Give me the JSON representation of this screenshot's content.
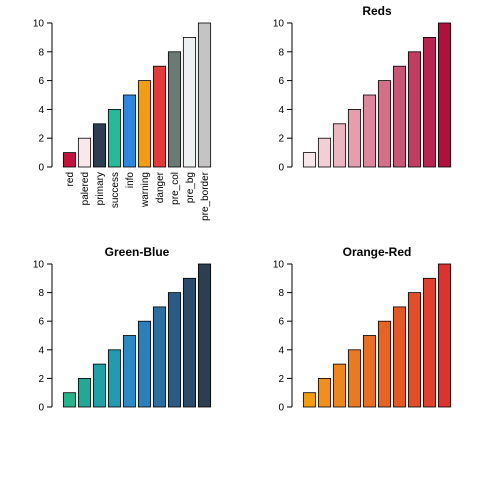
{
  "chart_data": [
    {
      "type": "bar",
      "categories": [
        "red",
        "palered",
        "primary",
        "success",
        "info",
        "warning",
        "danger",
        "pre_col",
        "pre_bg",
        "pre_border"
      ],
      "values": [
        1,
        2,
        3,
        4,
        5,
        6,
        7,
        8,
        9,
        10
      ],
      "colors": [
        "#c0143c",
        "#f8e8ea",
        "#2c3e50",
        "#26b99a",
        "#2e86de",
        "#f39c12",
        "#e23a3a",
        "#6c7a75",
        "#ecf0f1",
        "#c4c4c4"
      ],
      "ylim": [
        0,
        10
      ],
      "yticks": [
        0,
        2,
        4,
        6,
        8,
        10
      ]
    },
    {
      "type": "bar",
      "title": "Reds",
      "values": [
        1,
        2,
        3,
        4,
        5,
        6,
        7,
        8,
        9,
        10
      ],
      "colors": [
        "#f7e6e9",
        "#f2ced5",
        "#ecb6c1",
        "#e49fae",
        "#dc879b",
        "#d46f88",
        "#c95574",
        "#c23d62",
        "#b8244f",
        "#b0103c"
      ],
      "ylim": [
        0,
        10
      ],
      "yticks": [
        0,
        2,
        4,
        6,
        8,
        10
      ]
    },
    {
      "type": "bar",
      "title": "Green-Blue",
      "values": [
        1,
        2,
        3,
        4,
        5,
        6,
        7,
        8,
        9,
        10
      ],
      "colors": [
        "#26b28a",
        "#22a897",
        "#22a0a8",
        "#229ab0",
        "#2a8bc4",
        "#2c7fbb",
        "#2b6ea0",
        "#2b5a86",
        "#2c4a6c",
        "#2c3e50"
      ],
      "ylim": [
        0,
        10
      ],
      "yticks": [
        0,
        2,
        4,
        6,
        8,
        10
      ]
    },
    {
      "type": "bar",
      "title": "Orange-Red",
      "values": [
        1,
        2,
        3,
        4,
        5,
        6,
        7,
        8,
        9,
        10
      ],
      "colors": [
        "#f39c12",
        "#f0901a",
        "#ed8520",
        "#ea7a20",
        "#e86e22",
        "#e66324",
        "#e45826",
        "#e24d2a",
        "#e0402c",
        "#dd3330"
      ],
      "ylim": [
        0,
        10
      ],
      "yticks": [
        0,
        2,
        4,
        6,
        8,
        10
      ]
    }
  ]
}
